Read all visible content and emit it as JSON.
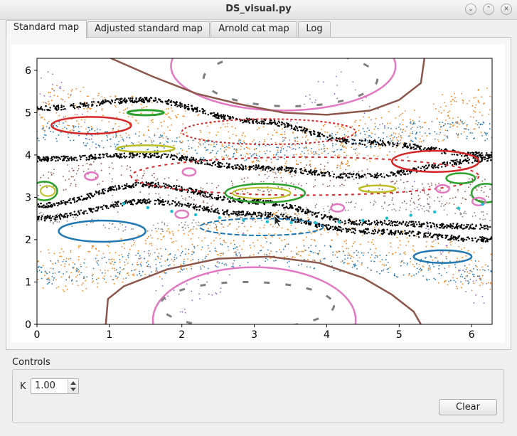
{
  "window": {
    "title": "DS_visual.py"
  },
  "tabs": [
    {
      "label": "Standard map",
      "active": true
    },
    {
      "label": "Adjusted standard map",
      "active": false
    },
    {
      "label": "Arnold cat map",
      "active": false
    },
    {
      "label": "Log",
      "active": false
    }
  ],
  "controls": {
    "group_label": "Controls",
    "k_label": "K",
    "k_value": "1.00",
    "clear_label": "Clear"
  },
  "icons": {
    "minimize": "minimize-icon",
    "maximize": "maximize-icon",
    "close": "close-icon",
    "spin_up": "spin-up-icon",
    "spin_down": "spin-down-icon",
    "cursor": "mouse-cursor-icon"
  },
  "chart_data": {
    "type": "scatter",
    "title": "",
    "xlabel": "",
    "ylabel": "",
    "xlim": [
      0,
      6.283
    ],
    "ylim": [
      0,
      6.283
    ],
    "x_ticks": [
      "0",
      "1",
      "2",
      "3",
      "4",
      "5",
      "6"
    ],
    "y_ticks": [
      "0",
      "1",
      "2",
      "3",
      "4",
      "5",
      "6"
    ],
    "grid": false,
    "description_of_series": [
      {
        "kind": "invariant-curve",
        "color": "#e377c2",
        "x": [
          2.0,
          2.8,
          3.6,
          4.4,
          4.65,
          4.4,
          3.6,
          2.8,
          2.0
        ],
        "y": [
          6.28,
          5.75,
          5.15,
          5.0,
          5.6,
          6.1,
          6.28,
          6.28,
          6.28
        ]
      },
      {
        "kind": "invariant-curve",
        "color": "#8c564b",
        "x": [
          1.0,
          1.5,
          2.0,
          2.5,
          3.0,
          3.5,
          4.0,
          4.5,
          5.0,
          5.3,
          5.3
        ],
        "y": [
          6.28,
          5.9,
          5.5,
          5.25,
          5.05,
          4.95,
          4.9,
          5.0,
          5.3,
          5.7,
          6.28
        ]
      },
      {
        "kind": "island-chain",
        "color": "#1f77b4",
        "x": [
          0.8,
          3.2,
          5.6
        ],
        "y": [
          2.25,
          2.3,
          1.6
        ]
      },
      {
        "kind": "island-chain",
        "color": "#d62728",
        "x": [
          0.9,
          3.5,
          5.4
        ],
        "y": [
          4.7,
          3.8,
          3.8
        ]
      },
      {
        "kind": "stochastic-layer",
        "color": "#17becf",
        "x": [
          0,
          1.5,
          3.0,
          4.5,
          6.28
        ],
        "y": [
          2.8,
          3.3,
          2.9,
          2.4,
          2.3
        ]
      },
      {
        "kind": "stochastic-layer",
        "color": "#bcbd22",
        "x": [
          0,
          1.5,
          3.0,
          4.5,
          6.28
        ],
        "y": [
          2.5,
          2.9,
          2.6,
          2.2,
          2.0
        ]
      },
      {
        "kind": "stochastic-layer",
        "color": "#2ca02c",
        "x": [
          0,
          1.5,
          3.0,
          4.5,
          6.28
        ],
        "y": [
          3.9,
          4.0,
          3.7,
          3.5,
          3.9
        ]
      },
      {
        "kind": "stochastic-layer",
        "color": "#ff7f0e",
        "x": [
          0,
          1.5,
          3.0,
          4.5,
          6.28
        ],
        "y": [
          5.1,
          5.3,
          4.8,
          4.3,
          4.0
        ]
      }
    ]
  }
}
